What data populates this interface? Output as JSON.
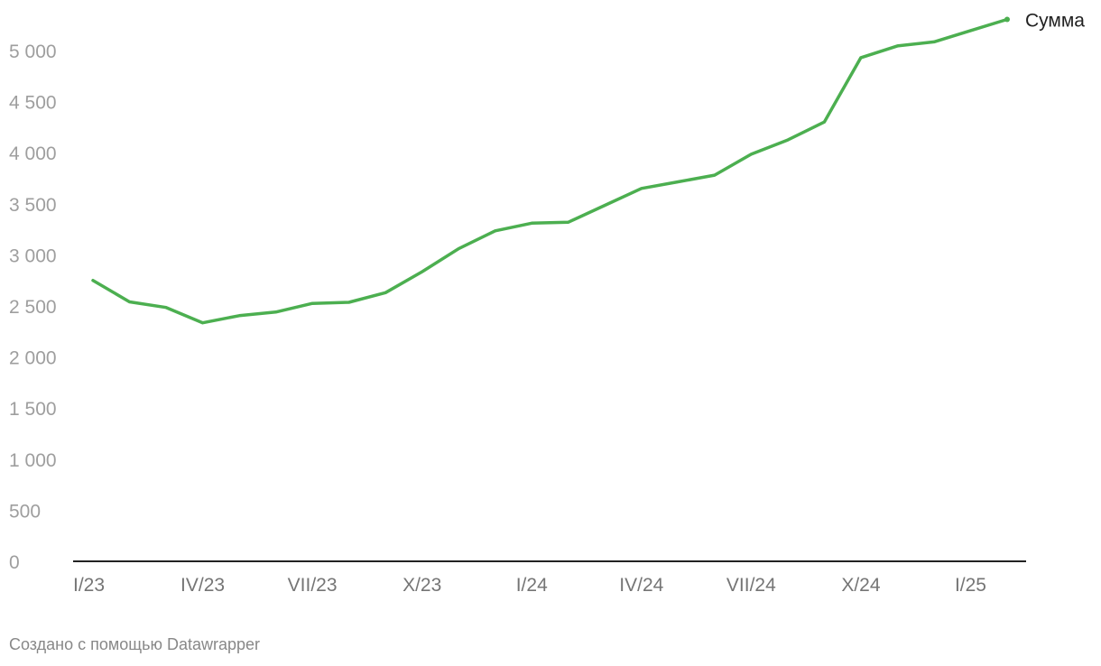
{
  "chart_data": {
    "type": "line",
    "x": [
      "I/23",
      "II/23",
      "III/23",
      "IV/23",
      "V/23",
      "VI/23",
      "VII/23",
      "VIII/23",
      "IX/23",
      "X/23",
      "XI/23",
      "XII/23",
      "I/24",
      "II/24",
      "III/24",
      "IV/24",
      "V/24",
      "VI/24",
      "VII/24",
      "VIII/24",
      "IX/24",
      "X/24",
      "XI/24",
      "XII/24",
      "I/25",
      "II/25"
    ],
    "x_tick_labels": [
      "I/23",
      "IV/23",
      "VII/23",
      "X/23",
      "I/24",
      "IV/24",
      "VII/24",
      "X/24",
      "I/25"
    ],
    "series": [
      {
        "name": "Сумма",
        "color": "#4caf50",
        "values": [
          2750,
          2540,
          2485,
          2335,
          2405,
          2440,
          2525,
          2535,
          2630,
          2835,
          3060,
          3235,
          3310,
          3320,
          3485,
          3650,
          3715,
          3780,
          3985,
          4125,
          4300,
          4930,
          5045,
          5085,
          5195,
          5305
        ]
      }
    ],
    "ylim": [
      0,
      5000
    ],
    "yticks": [
      0,
      500,
      1000,
      1500,
      2000,
      2500,
      3000,
      3500,
      4000,
      4500,
      5000
    ],
    "ytick_labels": [
      "0",
      "500",
      "1 000",
      "1 500",
      "2 000",
      "2 500",
      "3 000",
      "3 500",
      "4 000",
      "4 500",
      "5 000"
    ],
    "grid": false
  },
  "footer": {
    "credit": "Создано с помощью Datawrapper"
  }
}
